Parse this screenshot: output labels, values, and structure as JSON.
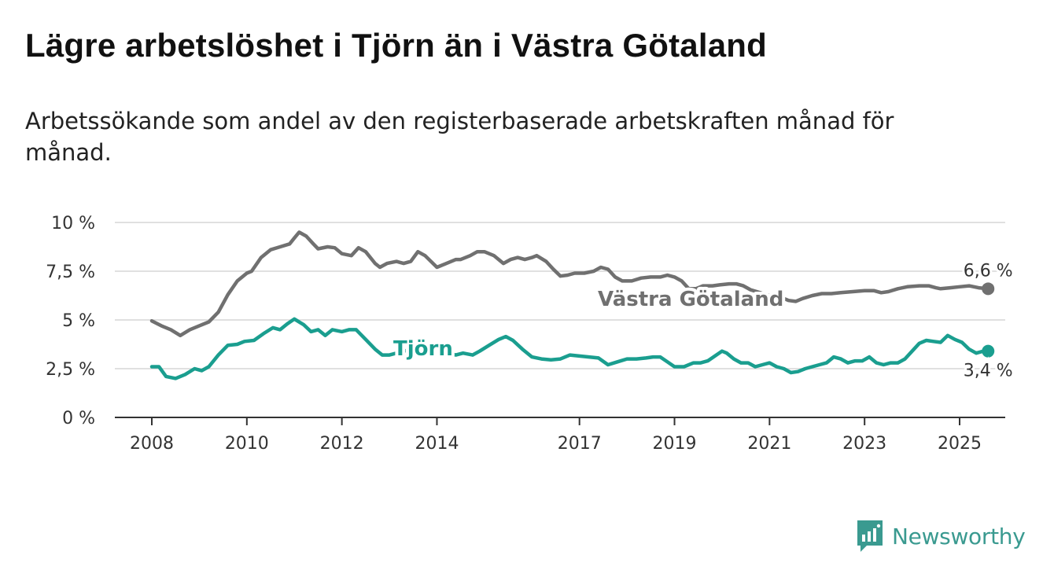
{
  "title": "Lägre arbetslöshet i Tjörn än i Västra Götaland",
  "subtitle": "Arbetssökande som andel av den registerbaserade arbetskraften månad för månad.",
  "brand": {
    "name": "Newsworthy",
    "color": "#3a9a90"
  },
  "chart_data": {
    "type": "line",
    "y_ticks": [
      "0 %",
      "2,5 %",
      "5 %",
      "7,5 %",
      "10 %"
    ],
    "x_ticks": [
      "2008",
      "2010",
      "2012",
      "2014",
      "2017",
      "2019",
      "2021",
      "2023",
      "2025"
    ],
    "ylim": [
      0,
      10
    ],
    "grid": true,
    "series": [
      {
        "name": "Västra Götaland",
        "color": "#707070",
        "end_label": "6,6 %",
        "points": [
          [
            2008.0,
            4.95
          ],
          [
            2008.2,
            4.7
          ],
          [
            2008.4,
            4.5
          ],
          [
            2008.6,
            4.2
          ],
          [
            2008.8,
            4.5
          ],
          [
            2009.0,
            4.7
          ],
          [
            2009.2,
            4.9
          ],
          [
            2009.4,
            5.4
          ],
          [
            2009.6,
            6.3
          ],
          [
            2009.8,
            7.0
          ],
          [
            2010.0,
            7.4
          ],
          [
            2010.1,
            7.5
          ],
          [
            2010.3,
            8.2
          ],
          [
            2010.5,
            8.6
          ],
          [
            2010.7,
            8.75
          ],
          [
            2010.9,
            8.9
          ],
          [
            2011.0,
            9.2
          ],
          [
            2011.1,
            9.5
          ],
          [
            2011.25,
            9.3
          ],
          [
            2011.4,
            8.9
          ],
          [
            2011.5,
            8.65
          ],
          [
            2011.7,
            8.75
          ],
          [
            2011.85,
            8.7
          ],
          [
            2012.0,
            8.4
          ],
          [
            2012.2,
            8.3
          ],
          [
            2012.35,
            8.7
          ],
          [
            2012.5,
            8.5
          ],
          [
            2012.7,
            7.9
          ],
          [
            2012.8,
            7.7
          ],
          [
            2012.95,
            7.9
          ],
          [
            2013.15,
            8.0
          ],
          [
            2013.3,
            7.9
          ],
          [
            2013.45,
            8.0
          ],
          [
            2013.6,
            8.5
          ],
          [
            2013.75,
            8.3
          ],
          [
            2014.0,
            7.7
          ],
          [
            2014.2,
            7.9
          ],
          [
            2014.4,
            8.1
          ],
          [
            2014.5,
            8.1
          ],
          [
            2014.7,
            8.3
          ],
          [
            2014.85,
            8.5
          ],
          [
            2015.0,
            8.5
          ],
          [
            2015.2,
            8.3
          ],
          [
            2015.4,
            7.9
          ],
          [
            2015.55,
            8.1
          ],
          [
            2015.7,
            8.2
          ],
          [
            2015.85,
            8.1
          ],
          [
            2016.0,
            8.2
          ],
          [
            2016.1,
            8.3
          ],
          [
            2016.3,
            8.0
          ],
          [
            2016.45,
            7.6
          ],
          [
            2016.6,
            7.25
          ],
          [
            2016.75,
            7.3
          ],
          [
            2016.9,
            7.4
          ],
          [
            2017.1,
            7.4
          ],
          [
            2017.3,
            7.5
          ],
          [
            2017.45,
            7.7
          ],
          [
            2017.6,
            7.6
          ],
          [
            2017.75,
            7.2
          ],
          [
            2017.9,
            7.0
          ],
          [
            2018.1,
            7.0
          ],
          [
            2018.3,
            7.15
          ],
          [
            2018.5,
            7.2
          ],
          [
            2018.7,
            7.2
          ],
          [
            2018.85,
            7.3
          ],
          [
            2019.0,
            7.2
          ],
          [
            2019.15,
            7.0
          ],
          [
            2019.3,
            6.6
          ],
          [
            2019.45,
            6.6
          ],
          [
            2019.6,
            6.75
          ],
          [
            2019.8,
            6.75
          ],
          [
            2019.95,
            6.8
          ],
          [
            2020.15,
            6.85
          ],
          [
            2020.3,
            6.85
          ],
          [
            2020.45,
            6.75
          ],
          [
            2020.6,
            6.55
          ],
          [
            2020.8,
            6.4
          ],
          [
            2021.0,
            6.25
          ],
          [
            2021.2,
            6.2
          ],
          [
            2021.4,
            6.0
          ],
          [
            2021.55,
            5.95
          ],
          [
            2021.7,
            6.1
          ],
          [
            2021.9,
            6.25
          ],
          [
            2022.1,
            6.35
          ],
          [
            2022.3,
            6.35
          ],
          [
            2022.5,
            6.4
          ],
          [
            2022.75,
            6.45
          ],
          [
            2023.0,
            6.5
          ],
          [
            2023.2,
            6.5
          ],
          [
            2023.35,
            6.4
          ],
          [
            2023.5,
            6.45
          ],
          [
            2023.7,
            6.6
          ],
          [
            2023.9,
            6.7
          ],
          [
            2024.15,
            6.75
          ],
          [
            2024.35,
            6.75
          ],
          [
            2024.5,
            6.65
          ],
          [
            2024.6,
            6.6
          ],
          [
            2024.8,
            6.65
          ],
          [
            2025.0,
            6.7
          ],
          [
            2025.2,
            6.75
          ],
          [
            2025.4,
            6.65
          ],
          [
            2025.6,
            6.6
          ]
        ]
      },
      {
        "name": "Tjörn",
        "color": "#1a9e8f",
        "end_label": "3,4 %",
        "points": [
          [
            2008.0,
            2.6
          ],
          [
            2008.15,
            2.6
          ],
          [
            2008.3,
            2.1
          ],
          [
            2008.5,
            2.0
          ],
          [
            2008.7,
            2.2
          ],
          [
            2008.9,
            2.5
          ],
          [
            2009.05,
            2.4
          ],
          [
            2009.2,
            2.6
          ],
          [
            2009.4,
            3.2
          ],
          [
            2009.6,
            3.7
          ],
          [
            2009.8,
            3.75
          ],
          [
            2009.95,
            3.9
          ],
          [
            2010.15,
            3.95
          ],
          [
            2010.35,
            4.3
          ],
          [
            2010.55,
            4.6
          ],
          [
            2010.7,
            4.5
          ],
          [
            2010.85,
            4.8
          ],
          [
            2011.0,
            5.05
          ],
          [
            2011.2,
            4.75
          ],
          [
            2011.35,
            4.4
          ],
          [
            2011.5,
            4.5
          ],
          [
            2011.65,
            4.2
          ],
          [
            2011.8,
            4.5
          ],
          [
            2012.0,
            4.4
          ],
          [
            2012.15,
            4.5
          ],
          [
            2012.3,
            4.5
          ],
          [
            2012.5,
            4.0
          ],
          [
            2012.7,
            3.5
          ],
          [
            2012.85,
            3.2
          ],
          [
            2013.0,
            3.2
          ],
          [
            2013.15,
            3.3
          ],
          [
            2013.3,
            3.4
          ],
          [
            2013.5,
            3.5
          ],
          [
            2013.65,
            3.7
          ],
          [
            2013.8,
            3.6
          ],
          [
            2014.0,
            3.55
          ],
          [
            2014.2,
            3.3
          ],
          [
            2014.4,
            3.2
          ],
          [
            2014.55,
            3.3
          ],
          [
            2014.75,
            3.2
          ],
          [
            2014.9,
            3.4
          ],
          [
            2015.1,
            3.7
          ],
          [
            2015.3,
            4.0
          ],
          [
            2015.45,
            4.15
          ],
          [
            2015.6,
            3.95
          ],
          [
            2015.8,
            3.5
          ],
          [
            2016.0,
            3.1
          ],
          [
            2016.2,
            3.0
          ],
          [
            2016.4,
            2.95
          ],
          [
            2016.6,
            3.0
          ],
          [
            2016.8,
            3.2
          ],
          [
            2017.0,
            3.15
          ],
          [
            2017.2,
            3.1
          ],
          [
            2017.4,
            3.05
          ],
          [
            2017.6,
            2.7
          ],
          [
            2017.8,
            2.85
          ],
          [
            2018.0,
            3.0
          ],
          [
            2018.2,
            3.0
          ],
          [
            2018.4,
            3.05
          ],
          [
            2018.55,
            3.1
          ],
          [
            2018.7,
            3.1
          ],
          [
            2018.85,
            2.85
          ],
          [
            2019.0,
            2.6
          ],
          [
            2019.2,
            2.6
          ],
          [
            2019.4,
            2.8
          ],
          [
            2019.55,
            2.8
          ],
          [
            2019.7,
            2.9
          ],
          [
            2019.85,
            3.15
          ],
          [
            2020.0,
            3.4
          ],
          [
            2020.1,
            3.3
          ],
          [
            2020.25,
            3.0
          ],
          [
            2020.4,
            2.8
          ],
          [
            2020.55,
            2.8
          ],
          [
            2020.7,
            2.6
          ],
          [
            2020.85,
            2.7
          ],
          [
            2021.0,
            2.8
          ],
          [
            2021.15,
            2.6
          ],
          [
            2021.3,
            2.5
          ],
          [
            2021.45,
            2.3
          ],
          [
            2021.6,
            2.35
          ],
          [
            2021.75,
            2.5
          ],
          [
            2021.9,
            2.6
          ],
          [
            2022.05,
            2.7
          ],
          [
            2022.2,
            2.8
          ],
          [
            2022.35,
            3.1
          ],
          [
            2022.5,
            3.0
          ],
          [
            2022.65,
            2.8
          ],
          [
            2022.8,
            2.9
          ],
          [
            2022.95,
            2.9
          ],
          [
            2023.1,
            3.1
          ],
          [
            2023.25,
            2.8
          ],
          [
            2023.4,
            2.7
          ],
          [
            2023.55,
            2.8
          ],
          [
            2023.7,
            2.8
          ],
          [
            2023.85,
            3.0
          ],
          [
            2024.0,
            3.4
          ],
          [
            2024.15,
            3.8
          ],
          [
            2024.3,
            3.95
          ],
          [
            2024.45,
            3.9
          ],
          [
            2024.6,
            3.85
          ],
          [
            2024.75,
            4.2
          ],
          [
            2024.9,
            4.0
          ],
          [
            2025.05,
            3.85
          ],
          [
            2025.2,
            3.5
          ],
          [
            2025.35,
            3.3
          ],
          [
            2025.5,
            3.4
          ],
          [
            2025.6,
            3.4
          ]
        ]
      }
    ]
  }
}
